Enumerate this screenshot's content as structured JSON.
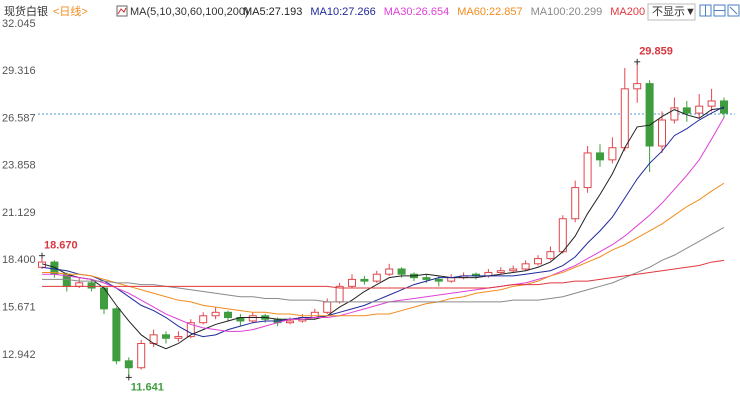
{
  "chart_data": {
    "type": "candlestick",
    "title": "现货白银",
    "period": "<日线>",
    "ma_label": "MA(5,10,30,60,100,200)",
    "toggle_label": "不显示▼",
    "ylim": [
      10.8,
      32.85
    ],
    "yticks": [
      12.942,
      15.671,
      18.4,
      21.129,
      23.858,
      26.587,
      29.316,
      32.045
    ],
    "ytick_labels": [
      "12.942",
      "15.671",
      "18.400",
      "21.129",
      "23.858",
      "26.587",
      "29.316",
      "32.045"
    ],
    "grid": false,
    "up_color": "#e0474c",
    "down_color": "#3f9d3f",
    "reference_line": 26.85,
    "reference_color": "#4a9fd8",
    "annotations": [
      {
        "value": 29.859,
        "label": "29.859",
        "color": "#d9363e"
      },
      {
        "value": 18.67,
        "label": "18.670",
        "color": "#d9363e"
      },
      {
        "value": 11.641,
        "label": "11.641",
        "color": "#3f9d3f"
      }
    ],
    "open": [
      18.0,
      18.3,
      17.6,
      16.9,
      17.1,
      16.8,
      15.6,
      12.6,
      12.2,
      13.6,
      14.1,
      13.9,
      14.0,
      14.8,
      15.2,
      15.4,
      15.1,
      14.9,
      15.2,
      15.0,
      14.8,
      14.9,
      15.1,
      15.4,
      16.0,
      16.9,
      17.3,
      17.2,
      17.6,
      17.9,
      17.6,
      17.4,
      17.3,
      17.2,
      17.4,
      17.6,
      17.5,
      17.7,
      17.8,
      17.9,
      18.2,
      18.5,
      18.9,
      20.8,
      22.6,
      24.6,
      24.2,
      24.9,
      28.3,
      28.6,
      25.0,
      26.5,
      27.2,
      26.9,
      27.3,
      27.6
    ],
    "high": [
      18.67,
      18.4,
      17.7,
      17.4,
      17.3,
      16.9,
      15.7,
      12.8,
      13.8,
      14.4,
      14.3,
      14.3,
      15.0,
      15.4,
      15.7,
      15.5,
      15.3,
      15.4,
      15.3,
      15.1,
      15.1,
      15.3,
      15.6,
      16.2,
      17.1,
      17.6,
      17.5,
      17.8,
      18.2,
      18.0,
      17.7,
      17.6,
      17.5,
      17.6,
      17.7,
      17.7,
      17.9,
      18.0,
      18.1,
      18.4,
      18.7,
      19.2,
      21.0,
      23.0,
      25.0,
      25.1,
      25.5,
      29.5,
      29.859,
      28.8,
      27.0,
      27.8,
      27.6,
      28.0,
      28.3,
      27.8
    ],
    "low": [
      17.9,
      17.4,
      16.6,
      16.8,
      16.6,
      15.3,
      12.4,
      11.641,
      12.1,
      13.4,
      13.6,
      13.7,
      13.9,
      14.7,
      15.0,
      14.9,
      14.6,
      14.8,
      14.8,
      14.6,
      14.7,
      14.8,
      15.0,
      15.3,
      15.9,
      16.8,
      17.0,
      17.1,
      17.5,
      17.4,
      17.2,
      17.1,
      16.9,
      17.1,
      17.3,
      17.3,
      17.4,
      17.6,
      17.7,
      17.8,
      18.1,
      18.4,
      18.8,
      20.6,
      22.3,
      23.8,
      24.0,
      24.7,
      27.5,
      23.5,
      24.6,
      26.3,
      26.4,
      26.6,
      27.0,
      26.6
    ],
    "close": [
      18.3,
      17.6,
      16.9,
      17.1,
      16.8,
      15.6,
      12.6,
      12.2,
      13.6,
      14.1,
      13.9,
      14.0,
      14.8,
      15.2,
      15.4,
      15.1,
      14.9,
      15.2,
      15.0,
      14.8,
      14.9,
      15.1,
      15.4,
      16.0,
      16.9,
      17.3,
      17.2,
      17.6,
      17.9,
      17.6,
      17.4,
      17.3,
      17.2,
      17.4,
      17.5,
      17.5,
      17.7,
      17.8,
      17.9,
      18.2,
      18.5,
      18.9,
      20.8,
      22.6,
      24.6,
      24.2,
      24.9,
      28.3,
      28.6,
      25.0,
      26.5,
      27.2,
      26.9,
      27.3,
      27.6,
      26.9
    ],
    "series": [
      {
        "name": "MA5:27.193",
        "color": "#222222",
        "values": [
          18.2,
          18.0,
          17.6,
          17.4,
          17.3,
          16.8,
          15.8,
          14.9,
          14.1,
          13.6,
          13.3,
          13.6,
          14.1,
          14.4,
          14.7,
          14.9,
          15.1,
          15.1,
          15.1,
          15.0,
          15.0,
          15.0,
          15.0,
          15.2,
          15.7,
          16.1,
          16.6,
          17.0,
          17.4,
          17.5,
          17.5,
          17.6,
          17.5,
          17.4,
          17.4,
          17.4,
          17.5,
          17.6,
          17.7,
          17.8,
          18.0,
          18.3,
          18.9,
          19.8,
          21.1,
          22.2,
          23.4,
          24.9,
          26.1,
          26.2,
          26.7,
          27.1,
          26.8,
          26.6,
          27.1,
          27.193
        ]
      },
      {
        "name": "MA10:27.266",
        "color": "#1f2a9c",
        "values": [
          18.0,
          17.9,
          17.8,
          17.6,
          17.5,
          17.2,
          16.8,
          16.3,
          15.8,
          15.5,
          15.1,
          14.6,
          14.2,
          14.0,
          14.1,
          14.4,
          14.6,
          14.8,
          14.9,
          14.9,
          15.0,
          15.1,
          15.1,
          15.2,
          15.4,
          15.6,
          15.8,
          16.1,
          16.4,
          16.7,
          17.0,
          17.2,
          17.4,
          17.4,
          17.5,
          17.5,
          17.5,
          17.5,
          17.5,
          17.6,
          17.7,
          17.8,
          18.1,
          18.6,
          19.4,
          20.1,
          20.9,
          22.0,
          23.1,
          24.0,
          24.7,
          25.6,
          26.0,
          26.5,
          26.9,
          27.266
        ]
      },
      {
        "name": "MA30:26.654",
        "color": "#e040d8",
        "values": [
          17.6,
          17.6,
          17.5,
          17.4,
          17.3,
          17.1,
          16.8,
          16.5,
          16.1,
          15.7,
          15.3,
          15.0,
          14.7,
          14.5,
          14.4,
          14.3,
          14.3,
          14.4,
          14.6,
          14.8,
          15.0,
          15.0,
          15.1,
          15.1,
          15.2,
          15.4,
          15.6,
          15.8,
          16.0,
          16.1,
          16.2,
          16.3,
          16.4,
          16.5,
          16.6,
          16.7,
          16.8,
          16.9,
          17.0,
          17.1,
          17.3,
          17.5,
          17.8,
          18.1,
          18.5,
          18.9,
          19.3,
          19.8,
          20.4,
          21.0,
          21.7,
          22.5,
          23.3,
          24.2,
          25.4,
          26.654
        ]
      },
      {
        "name": "MA60:22.857",
        "color": "#f28c1e",
        "values": [
          17.7,
          17.7,
          17.6,
          17.6,
          17.5,
          17.3,
          17.1,
          16.9,
          16.7,
          16.5,
          16.3,
          16.1,
          16.0,
          15.8,
          15.7,
          15.6,
          15.5,
          15.4,
          15.4,
          15.3,
          15.3,
          15.2,
          15.2,
          15.2,
          15.2,
          15.2,
          15.2,
          15.3,
          15.3,
          15.5,
          15.7,
          15.9,
          16.0,
          16.2,
          16.3,
          16.5,
          16.6,
          16.7,
          16.9,
          17.0,
          17.2,
          17.5,
          17.7,
          18.0,
          18.3,
          18.6,
          19.0,
          19.3,
          19.7,
          20.1,
          20.5,
          21.0,
          21.5,
          21.9,
          22.4,
          22.857
        ]
      },
      {
        "name": "MA100:20.299",
        "color": "#8a8a8a",
        "values": [
          17.3,
          17.3,
          17.3,
          17.2,
          17.2,
          17.2,
          17.1,
          17.1,
          17.0,
          17.0,
          16.9,
          16.8,
          16.7,
          16.6,
          16.5,
          16.4,
          16.3,
          16.3,
          16.2,
          16.2,
          16.1,
          16.1,
          16.1,
          16.0,
          16.0,
          16.0,
          16.0,
          16.0,
          16.0,
          16.0,
          16.0,
          16.0,
          16.0,
          16.0,
          16.0,
          16.0,
          16.0,
          16.0,
          16.1,
          16.1,
          16.1,
          16.2,
          16.3,
          16.5,
          16.7,
          16.9,
          17.1,
          17.4,
          17.7,
          18.0,
          18.4,
          18.7,
          19.1,
          19.5,
          19.9,
          20.299
        ]
      },
      {
        "name": "MA200",
        "color": "#e0383e",
        "values": [
          16.9,
          16.9,
          16.9,
          16.9,
          16.9,
          16.9,
          16.9,
          16.9,
          16.9,
          16.9,
          16.9,
          16.9,
          16.9,
          16.9,
          16.9,
          16.9,
          16.9,
          16.9,
          16.9,
          16.9,
          16.9,
          16.9,
          16.9,
          16.9,
          16.8,
          16.8,
          16.8,
          16.8,
          16.8,
          16.8,
          16.8,
          16.8,
          16.8,
          16.8,
          16.8,
          16.8,
          16.8,
          16.9,
          17.0,
          17.0,
          17.0,
          17.1,
          17.1,
          17.2,
          17.2,
          17.3,
          17.4,
          17.5,
          17.6,
          17.7,
          17.8,
          17.9,
          18.0,
          18.1,
          18.3,
          18.4
        ]
      }
    ]
  }
}
